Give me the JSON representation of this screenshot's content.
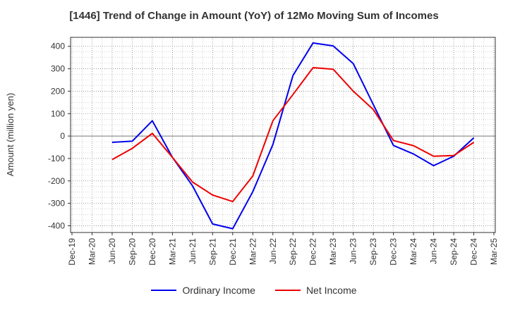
{
  "chart_data": {
    "type": "line",
    "title": "[1446]  Trend of Change in Amount (YoY) of 12Mo Moving Sum of Incomes",
    "ylabel": "Amount (million yen)",
    "xlabel": "",
    "ylim": [
      -430,
      440
    ],
    "yticks": [
      -400,
      -300,
      -200,
      -100,
      0,
      100,
      200,
      300,
      400
    ],
    "grid": true,
    "legend_position": "bottom",
    "categories": [
      "Dec-19",
      "Mar-20",
      "Jun-20",
      "Sep-20",
      "Dec-20",
      "Mar-21",
      "Jun-21",
      "Sep-21",
      "Dec-21",
      "Mar-22",
      "Jun-22",
      "Sep-22",
      "Dec-22",
      "Mar-23",
      "Jun-23",
      "Sep-23",
      "Dec-23",
      "Mar-24",
      "Jun-24",
      "Sep-24",
      "Dec-24",
      "Mar-25"
    ],
    "series": [
      {
        "name": "Ordinary Income",
        "color": "#0000ee",
        "values": [
          null,
          null,
          -28,
          -23,
          68,
          -95,
          -222,
          -392,
          -413,
          -248,
          -38,
          270,
          415,
          402,
          323,
          140,
          -42,
          -80,
          -132,
          -90,
          -8,
          null
        ]
      },
      {
        "name": "Net Income",
        "color": "#ee0000",
        "values": [
          null,
          null,
          -105,
          -55,
          12,
          -95,
          -205,
          -263,
          -292,
          -178,
          68,
          185,
          305,
          298,
          200,
          118,
          -20,
          -43,
          -90,
          -87,
          -28,
          null
        ]
      }
    ]
  }
}
